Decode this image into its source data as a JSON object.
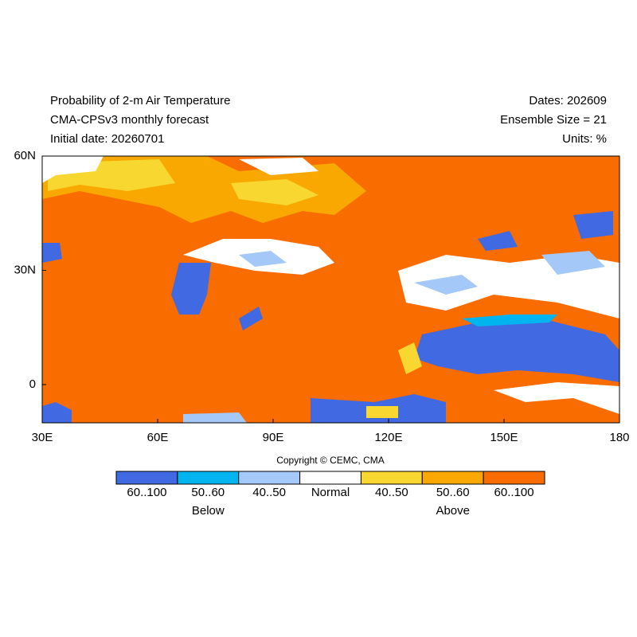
{
  "header": {
    "left": [
      "Probability of 2-m Air Temperature",
      "CMA-CPSv3 monthly forecast",
      "Initial date: 20260701"
    ],
    "right": [
      "Dates: 202609",
      "Ensemble Size = 21",
      "Units: %"
    ]
  },
  "map": {
    "lat_labels": [
      "60N",
      "30N",
      "0"
    ],
    "lon_labels": [
      "30E",
      "60E",
      "90E",
      "120E",
      "150E",
      "180"
    ]
  },
  "copyright": "Copyright © CEMC, CMA",
  "legend": {
    "items": [
      {
        "label": "60..100",
        "color": "#4169e1"
      },
      {
        "label": "50..60",
        "color": "#00b4f0"
      },
      {
        "label": "40..50",
        "color": "#a4c8f8"
      },
      {
        "label": "Normal",
        "color": "#ffffff"
      },
      {
        "label": "40..50",
        "color": "#f8d830"
      },
      {
        "label": "50..60",
        "color": "#f8a800"
      },
      {
        "label": "60..100",
        "color": "#f86c00"
      }
    ],
    "groups": [
      "Below",
      "Above"
    ]
  }
}
